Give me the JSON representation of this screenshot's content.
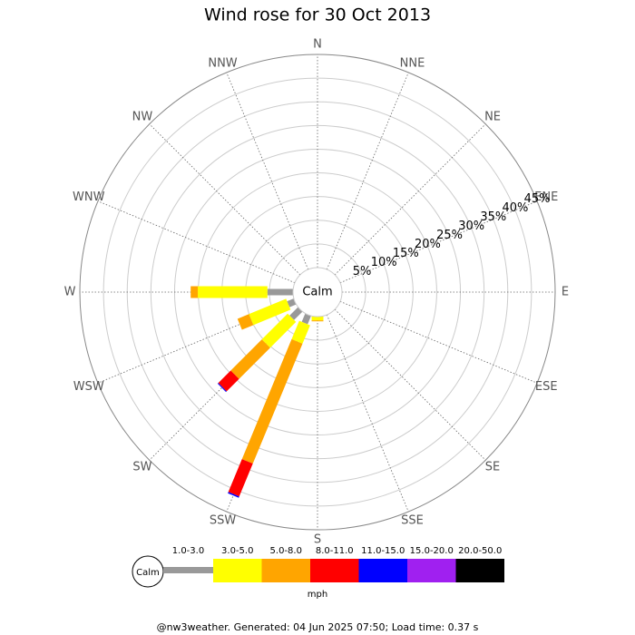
{
  "chart_data": {
    "type": "windrose",
    "title": "Wind rose for 30 Oct 2013",
    "directions": [
      "N",
      "NNE",
      "NE",
      "ENE",
      "E",
      "ESE",
      "SE",
      "SSE",
      "S",
      "SSW",
      "SW",
      "WSW",
      "W",
      "WNW",
      "NW",
      "NNW"
    ],
    "rlim": [
      0,
      45
    ],
    "rticks": [
      {
        "value": 5,
        "label": "5%"
      },
      {
        "value": 10,
        "label": "10%"
      },
      {
        "value": 15,
        "label": "15%"
      },
      {
        "value": 20,
        "label": "20%"
      },
      {
        "value": 25,
        "label": "25%"
      },
      {
        "value": 30,
        "label": "30%"
      },
      {
        "value": 35,
        "label": "35%"
      },
      {
        "value": 40,
        "label": "40%"
      },
      {
        "value": 45,
        "label": "45%"
      }
    ],
    "calm_label": "Calm",
    "units": "mph",
    "series": [
      {
        "name": "1.0-3.0",
        "color": "#999999",
        "values": [
          0,
          0,
          0,
          0,
          0,
          0,
          0,
          0,
          0,
          1.9,
          2.5,
          1.5,
          5.4,
          0,
          0,
          0
        ]
      },
      {
        "name": "3.0-5.0",
        "color": "#ffff00",
        "values": [
          0,
          0,
          0,
          0,
          0,
          0,
          0,
          0,
          0.8,
          4.2,
          7.7,
          8.5,
          14.7,
          0,
          0,
          0
        ]
      },
      {
        "name": "5.0-8.0",
        "color": "#ffa500",
        "values": [
          0,
          0,
          0,
          0,
          0,
          0,
          0,
          0,
          0.2,
          27.4,
          9.3,
          2.6,
          1.5,
          0,
          0,
          0
        ]
      },
      {
        "name": "8.0-11.0",
        "color": "#ff0000",
        "values": [
          0,
          0,
          0,
          0,
          0,
          0,
          0,
          0,
          0,
          7.5,
          3.7,
          0,
          0,
          0,
          0,
          0
        ]
      },
      {
        "name": "11.0-15.0",
        "color": "#0000ff",
        "values": [
          0,
          0,
          0,
          0,
          0,
          0,
          0,
          0,
          0,
          0.3,
          0.2,
          0,
          0,
          0,
          0,
          0
        ]
      },
      {
        "name": "15.0-20.0",
        "color": "#a020f0",
        "values": [
          0,
          0,
          0,
          0,
          0,
          0,
          0,
          0,
          0,
          0,
          0,
          0,
          0,
          0,
          0,
          0
        ]
      },
      {
        "name": "20.0-50.0",
        "color": "#000000",
        "values": [
          0,
          0,
          0,
          0,
          0,
          0,
          0,
          0,
          0,
          0,
          0,
          0,
          0,
          0,
          0,
          0
        ]
      }
    ],
    "footer": "@nw3weather. Generated: 04 Jun 2025 07:50; Load time: 0.37 s"
  }
}
